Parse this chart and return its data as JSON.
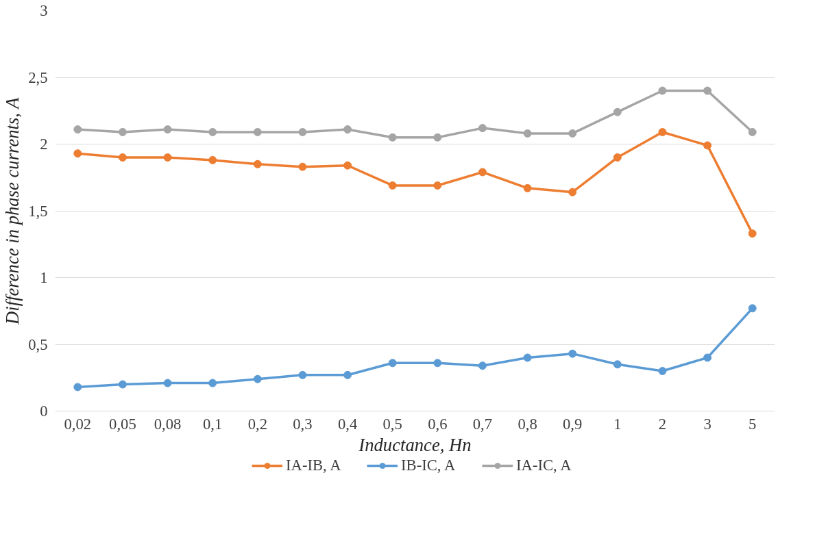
{
  "chart_data": {
    "type": "line",
    "xlabel": "Inductance, Hn",
    "ylabel": "Difference in phase currents, A",
    "categories": [
      "0,02",
      "0,05",
      "0,08",
      "0,1",
      "0,2",
      "0,3",
      "0,4",
      "0,5",
      "0,6",
      "0,7",
      "0,8",
      "0,9",
      "1",
      "2",
      "3",
      "5"
    ],
    "series": [
      {
        "name": "IA-IB, A",
        "color": "#ed7d31",
        "values": [
          1.93,
          1.9,
          1.9,
          1.88,
          1.85,
          1.83,
          1.84,
          1.69,
          1.69,
          1.79,
          1.67,
          1.64,
          1.9,
          2.09,
          1.99,
          1.33
        ]
      },
      {
        "name": "IB-IC, A",
        "color": "#5b9bd5",
        "values": [
          0.18,
          0.2,
          0.21,
          0.21,
          0.24,
          0.27,
          0.27,
          0.36,
          0.36,
          0.34,
          0.4,
          0.43,
          0.35,
          0.3,
          0.4,
          0.77
        ]
      },
      {
        "name": "IA-IC, A",
        "color": "#a5a5a5",
        "values": [
          2.11,
          2.09,
          2.11,
          2.09,
          2.09,
          2.09,
          2.11,
          2.05,
          2.05,
          2.12,
          2.08,
          2.08,
          2.24,
          2.4,
          2.4,
          2.09
        ]
      }
    ],
    "ylim": [
      0,
      3
    ],
    "yticks": [
      0,
      {
        "value": 0.5,
        "label": "0,5"
      },
      1,
      {
        "value": 1.5,
        "label": "1,5"
      },
      2,
      {
        "value": 2.5,
        "label": "2,5"
      },
      3
    ],
    "grid": "y",
    "legend": "bottom",
    "marker": "circle",
    "line_style": "solid"
  }
}
